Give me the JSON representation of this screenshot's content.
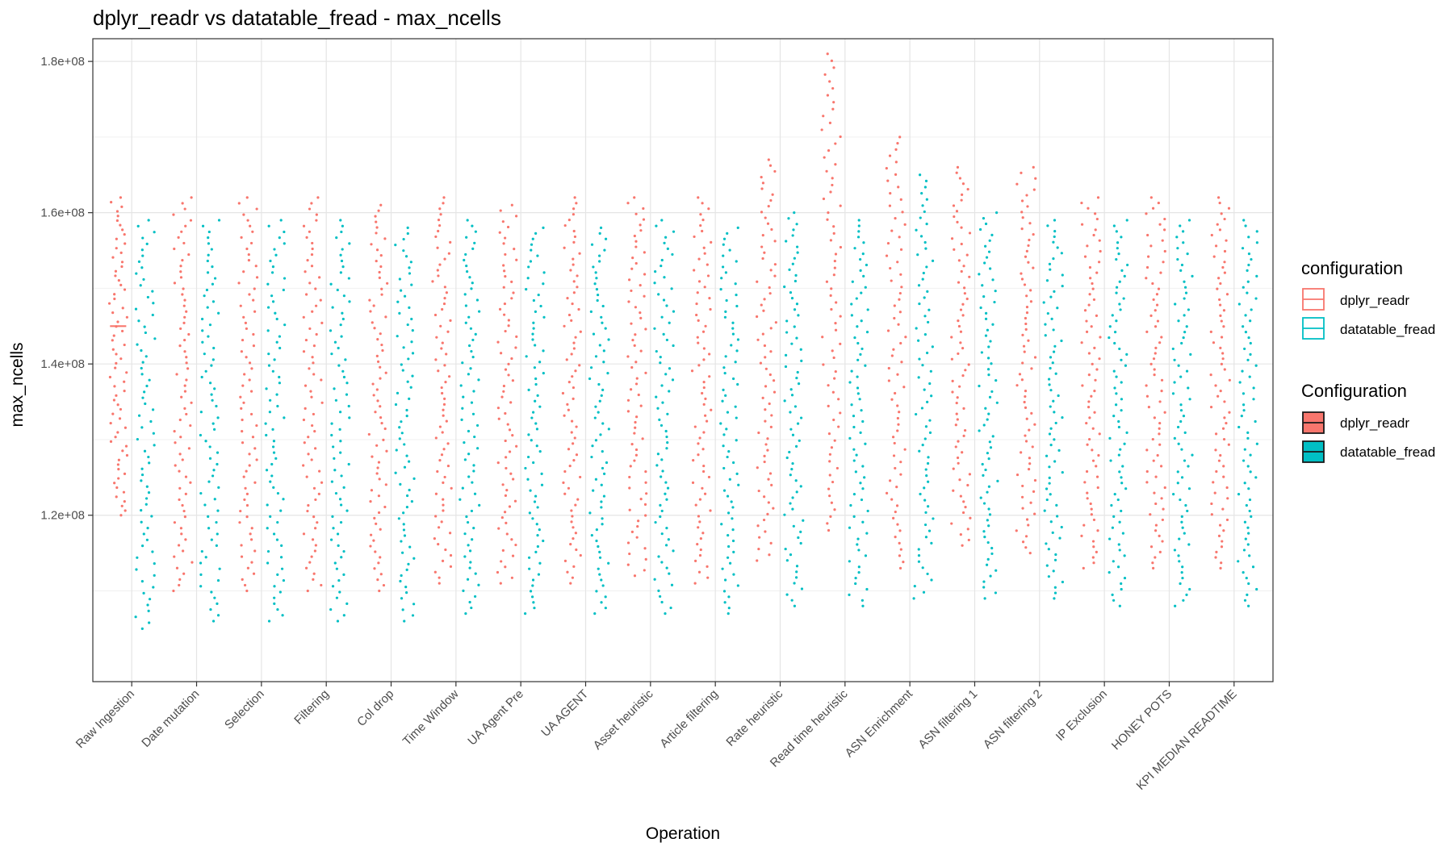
{
  "chart_data": {
    "type": "scatter",
    "title": "dplyr_readr vs datatable_fread - max_ncells",
    "xlabel": "Operation",
    "ylabel": "max_ncells",
    "ylim": [
      98000000,
      183000000
    ],
    "y_ticks": [
      120000000,
      140000000,
      160000000,
      180000000
    ],
    "y_tick_labels": [
      "1.2e+08",
      "1.4e+08",
      "1.6e+08",
      "1.8e+08"
    ],
    "grid": true,
    "legend_position": "right",
    "categories": [
      "Raw Ingestion",
      "Date mutation",
      "Selection",
      "Filtering",
      "Col drop",
      "Time Window",
      "UA Agent Pre",
      "UA AGENT",
      "Asset heuristic",
      "Article filtering",
      "Rate heuristic",
      "Read time heuristic",
      "ASN Enrichment",
      "ASN filtering 1",
      "ASN filtering 2",
      "IP Exclusion",
      "HONEY POTS",
      "KPI MEDIAN READTIME"
    ],
    "series": [
      {
        "name": "dplyr_readr",
        "color": "#F8766D",
        "offset": -0.42,
        "median": 145000000,
        "ranges": [
          [
            120000000,
            162000000
          ],
          [
            110000000,
            162000000
          ],
          [
            110000000,
            162000000
          ],
          [
            110000000,
            162000000
          ],
          [
            110000000,
            161000000
          ],
          [
            111000000,
            162000000
          ],
          [
            111000000,
            161000000
          ],
          [
            111000000,
            162000000
          ],
          [
            112000000,
            162000000
          ],
          [
            111000000,
            162000000
          ],
          [
            114000000,
            167000000
          ],
          [
            118000000,
            181000000
          ],
          [
            113000000,
            170000000
          ],
          [
            116000000,
            166000000
          ],
          [
            115000000,
            166000000
          ],
          [
            113000000,
            162000000
          ],
          [
            113000000,
            162000000
          ],
          [
            113000000,
            162000000
          ]
        ],
        "box_width": 0.25
      },
      {
        "name": "datatable_fread",
        "color": "#00BFC4",
        "offset": 0.42,
        "ranges": [
          [
            105000000,
            159000000
          ],
          [
            106000000,
            159000000
          ],
          [
            106000000,
            159000000
          ],
          [
            106000000,
            159000000
          ],
          [
            106000000,
            158000000
          ],
          [
            107000000,
            159000000
          ],
          [
            107000000,
            158000000
          ],
          [
            107000000,
            158000000
          ],
          [
            107000000,
            159000000
          ],
          [
            107000000,
            158000000
          ],
          [
            108000000,
            160000000
          ],
          [
            108000000,
            159000000
          ],
          [
            109000000,
            165000000
          ],
          [
            109000000,
            160000000
          ],
          [
            109000000,
            159000000
          ],
          [
            108000000,
            159000000
          ],
          [
            108000000,
            159000000
          ],
          [
            108000000,
            159000000
          ]
        ]
      }
    ]
  },
  "legend": {
    "outline_title": "configuration",
    "filled_title": "Configuration",
    "items": [
      {
        "label": "dplyr_readr",
        "color": "#F8766D"
      },
      {
        "label": "datatable_fread",
        "color": "#00BFC4"
      }
    ]
  }
}
